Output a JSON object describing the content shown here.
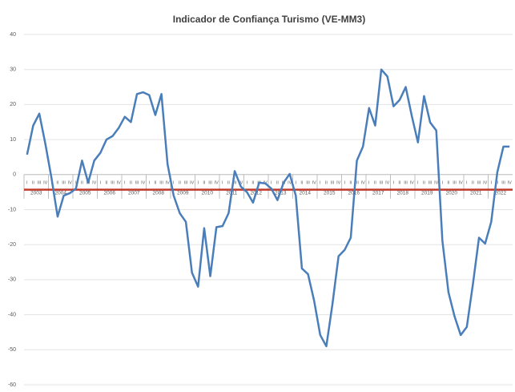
{
  "chart_data": {
    "type": "line",
    "title": "Indicador de Confiança Turismo (VE-MM3)",
    "categories": [
      "I",
      "II",
      "III",
      "IV",
      "I",
      "II",
      "III",
      "IV",
      "I",
      "II",
      "III",
      "IV",
      "I",
      "II",
      "III",
      "IV",
      "I",
      "II",
      "III",
      "IV",
      "I",
      "II",
      "III",
      "IV",
      "I",
      "II",
      "III",
      "IV",
      "I",
      "II",
      "III",
      "IV",
      "I",
      "II",
      "III",
      "IV",
      "I",
      "II",
      "III",
      "IV",
      "I",
      "II",
      "III",
      "IV",
      "I",
      "II",
      "III",
      "IV",
      "I",
      "II",
      "III",
      "IV",
      "I",
      "II",
      "III",
      "IV",
      "I",
      "II",
      "III",
      "IV",
      "I",
      "II",
      "III",
      "IV",
      "I",
      "II",
      "III",
      "IV",
      "I",
      "II",
      "III",
      "IV",
      "I",
      "II",
      "III",
      "IV",
      "I",
      "II",
      "III",
      "IV"
    ],
    "year_groups": [
      "2003",
      "2004",
      "2005",
      "2006",
      "2007",
      "2008",
      "2009",
      "2010",
      "2011",
      "2012",
      "2013",
      "2014",
      "2015",
      "2016",
      "2017",
      "2018",
      "2019",
      "2020",
      "2021",
      "2022"
    ],
    "series": [
      {
        "color": "#4a7ebb",
        "values": [
          5.7,
          14,
          17.4,
          8.7,
          -1,
          -12,
          -6,
          -5.3,
          -4,
          4,
          -2.3,
          4,
          6.2,
          10,
          11,
          13.3,
          16.5,
          15,
          23,
          23.5,
          22.7,
          17,
          23,
          3,
          -6,
          -11,
          -13.5,
          -28,
          -32,
          -15.3,
          -29,
          -15,
          -14.7,
          -11,
          1,
          -3.4,
          -5,
          -8,
          -2.3,
          -2.5,
          -4,
          -7.3,
          -2.3,
          0.2,
          -6,
          -26.8,
          -28.4,
          -36,
          -45.8,
          -49,
          -37,
          -23.3,
          -21.5,
          -18,
          4,
          8,
          19,
          14,
          30,
          28,
          19.5,
          21.3,
          25,
          16.7,
          9.2,
          22.4,
          14.9,
          12.6,
          -18.8,
          -33.6,
          -40.5,
          -45.8,
          -43.5,
          -31.3,
          -18,
          -19.7,
          -13.5,
          0.7,
          8,
          8
        ]
      }
    ],
    "reference_line": {
      "value": -4.3,
      "color": "#c0392b"
    },
    "ylim": [
      -60,
      40
    ],
    "yticks": [
      -60,
      -50,
      -40,
      -30,
      -20,
      -10,
      0,
      10,
      20,
      30,
      40
    ],
    "grid": true
  }
}
